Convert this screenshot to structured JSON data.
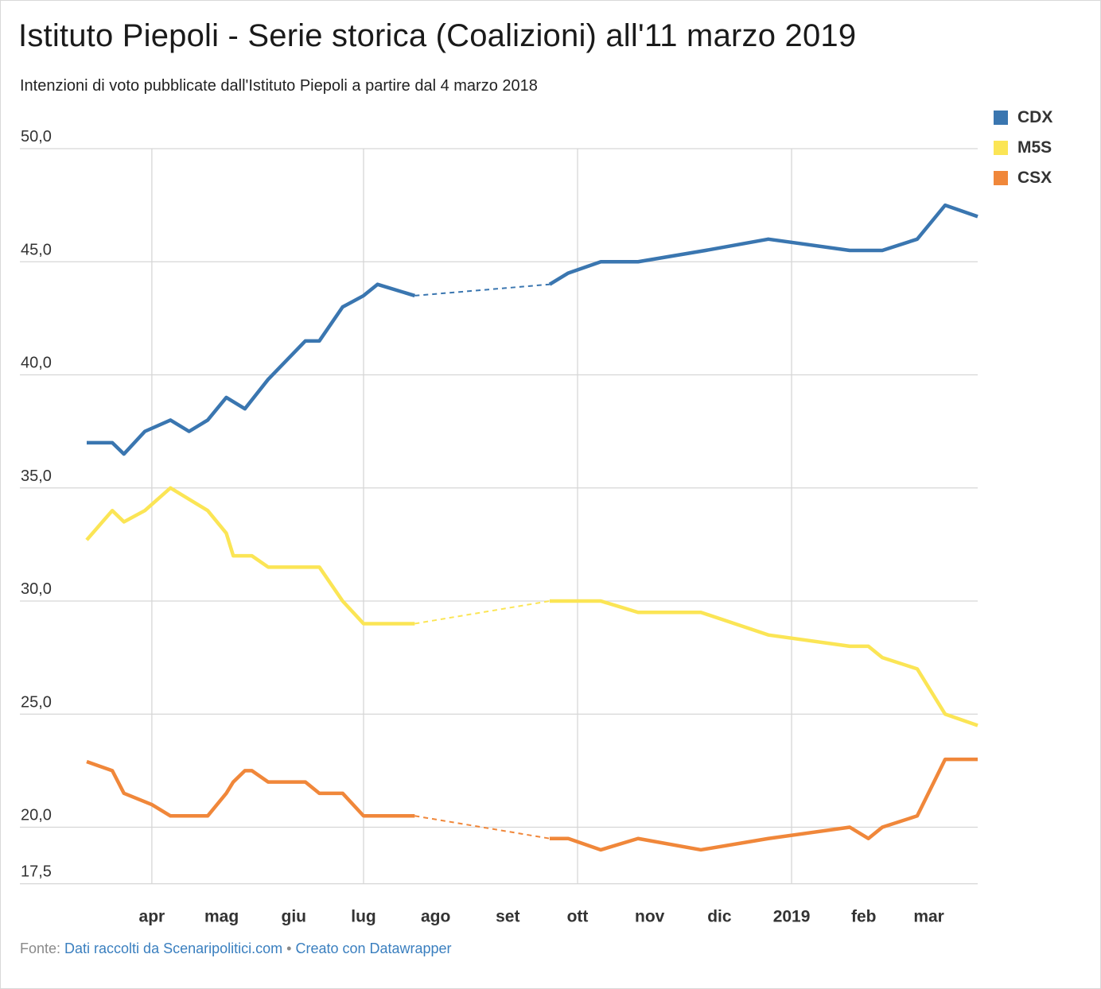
{
  "header": {
    "title": "Istituto Piepoli - Serie storica (Coalizioni) all'11 marzo 2019",
    "subtitle": "Intenzioni di voto pubblicate dall'Istituto Piepoli a partire dal 4 marzo 2018"
  },
  "footer": {
    "prefix": "Fonte: ",
    "source": "Dati raccolti da Scenaripolitici.com",
    "separator": " • ",
    "credit": "Creato con Datawrapper"
  },
  "chart_data": {
    "type": "line",
    "title": "Istituto Piepoli - Serie storica (Coalizioni) all'11 marzo 2019",
    "subtitle": "Intenzioni di voto pubblicate dall'Istituto Piepoli a partire dal 4 marzo 2018",
    "xlabel": "",
    "ylabel": "",
    "x_range": [
      "2018-03-04",
      "2019-03-11"
    ],
    "ylim": [
      17.5,
      50.0
    ],
    "y_ticks": [
      "50,0",
      "45,0",
      "40,0",
      "35,0",
      "30,0",
      "25,0",
      "20,0",
      "17,5"
    ],
    "y_tick_values": [
      50,
      45,
      40,
      35,
      30,
      25,
      20,
      17.5
    ],
    "x_ticks": [
      {
        "label": "apr",
        "date": "2018-04-01",
        "grid": true
      },
      {
        "label": "mag",
        "date": "2018-05-01",
        "grid": false
      },
      {
        "label": "giu",
        "date": "2018-06-01",
        "grid": false
      },
      {
        "label": "lug",
        "date": "2018-07-01",
        "grid": true
      },
      {
        "label": "ago",
        "date": "2018-08-01",
        "grid": false
      },
      {
        "label": "set",
        "date": "2018-09-01",
        "grid": false
      },
      {
        "label": "ott",
        "date": "2018-10-01",
        "grid": true
      },
      {
        "label": "nov",
        "date": "2018-11-01",
        "grid": false
      },
      {
        "label": "dic",
        "date": "2018-12-01",
        "grid": false
      },
      {
        "label": "2019",
        "date": "2019-01-01",
        "grid": true
      },
      {
        "label": "feb",
        "date": "2019-02-01",
        "grid": false
      },
      {
        "label": "mar",
        "date": "2019-03-01",
        "grid": false
      }
    ],
    "grid": true,
    "legend_position": "top-right",
    "gap": {
      "from": "2018-07-13",
      "to": "2018-09-19",
      "style": "dashed"
    },
    "series": [
      {
        "name": "CDX",
        "color": "#3a76b0",
        "points": [
          [
            "2018-03-04",
            37.0
          ],
          [
            "2018-03-15",
            37.0
          ],
          [
            "2018-03-20",
            36.5
          ],
          [
            "2018-03-29",
            37.5
          ],
          [
            "2018-04-09",
            38.0
          ],
          [
            "2018-04-17",
            37.5
          ],
          [
            "2018-04-25",
            38.0
          ],
          [
            "2018-05-03",
            39.0
          ],
          [
            "2018-05-11",
            38.5
          ],
          [
            "2018-05-21",
            39.8
          ],
          [
            "2018-06-06",
            41.5
          ],
          [
            "2018-06-12",
            41.5
          ],
          [
            "2018-06-22",
            43.0
          ],
          [
            "2018-07-01",
            43.5
          ],
          [
            "2018-07-07",
            44.0
          ],
          [
            "2018-07-23",
            43.5
          ],
          [
            "2018-09-19",
            44.0
          ],
          [
            "2018-09-27",
            44.5
          ],
          [
            "2018-10-11",
            45.0
          ],
          [
            "2018-10-27",
            45.0
          ],
          [
            "2018-11-25",
            45.5
          ],
          [
            "2018-12-22",
            46.0
          ],
          [
            "2019-01-26",
            45.5
          ],
          [
            "2019-02-09",
            45.5
          ],
          [
            "2019-02-24",
            46.0
          ],
          [
            "2019-03-08",
            47.5
          ],
          [
            "2019-03-22",
            47.0
          ]
        ]
      },
      {
        "name": "M5S",
        "color": "#fbe555",
        "points": [
          [
            "2018-03-04",
            32.7
          ],
          [
            "2018-03-15",
            34.0
          ],
          [
            "2018-03-20",
            33.5
          ],
          [
            "2018-03-29",
            34.0
          ],
          [
            "2018-04-09",
            35.0
          ],
          [
            "2018-04-25",
            34.0
          ],
          [
            "2018-05-03",
            33.0
          ],
          [
            "2018-05-06",
            32.0
          ],
          [
            "2018-05-14",
            32.0
          ],
          [
            "2018-05-21",
            31.5
          ],
          [
            "2018-06-12",
            31.5
          ],
          [
            "2018-06-22",
            30.0
          ],
          [
            "2018-07-01",
            29.0
          ],
          [
            "2018-07-23",
            29.0
          ],
          [
            "2018-09-19",
            30.0
          ],
          [
            "2018-10-11",
            30.0
          ],
          [
            "2018-10-27",
            29.5
          ],
          [
            "2018-11-23",
            29.5
          ],
          [
            "2018-12-22",
            28.5
          ],
          [
            "2019-01-26",
            28.0
          ],
          [
            "2019-02-03",
            28.0
          ],
          [
            "2019-02-09",
            27.5
          ],
          [
            "2019-02-24",
            27.0
          ],
          [
            "2019-03-08",
            25.0
          ],
          [
            "2019-03-22",
            24.5
          ]
        ]
      },
      {
        "name": "CSX",
        "color": "#f0873a",
        "points": [
          [
            "2018-03-04",
            22.9
          ],
          [
            "2018-03-15",
            22.5
          ],
          [
            "2018-03-20",
            21.5
          ],
          [
            "2018-04-01",
            21.0
          ],
          [
            "2018-04-09",
            20.5
          ],
          [
            "2018-04-25",
            20.5
          ],
          [
            "2018-05-03",
            21.5
          ],
          [
            "2018-05-06",
            22.0
          ],
          [
            "2018-05-11",
            22.5
          ],
          [
            "2018-05-14",
            22.5
          ],
          [
            "2018-05-21",
            22.0
          ],
          [
            "2018-06-06",
            22.0
          ],
          [
            "2018-06-12",
            21.5
          ],
          [
            "2018-06-22",
            21.5
          ],
          [
            "2018-07-01",
            20.5
          ],
          [
            "2018-07-23",
            20.5
          ],
          [
            "2018-09-19",
            19.5
          ],
          [
            "2018-09-27",
            19.5
          ],
          [
            "2018-10-11",
            19.0
          ],
          [
            "2018-10-27",
            19.5
          ],
          [
            "2018-11-23",
            19.0
          ],
          [
            "2018-12-22",
            19.5
          ],
          [
            "2019-01-26",
            20.0
          ],
          [
            "2019-02-03",
            19.5
          ],
          [
            "2019-02-09",
            20.0
          ],
          [
            "2019-02-24",
            20.5
          ],
          [
            "2019-03-08",
            23.0
          ],
          [
            "2019-03-22",
            23.0
          ]
        ]
      }
    ]
  }
}
